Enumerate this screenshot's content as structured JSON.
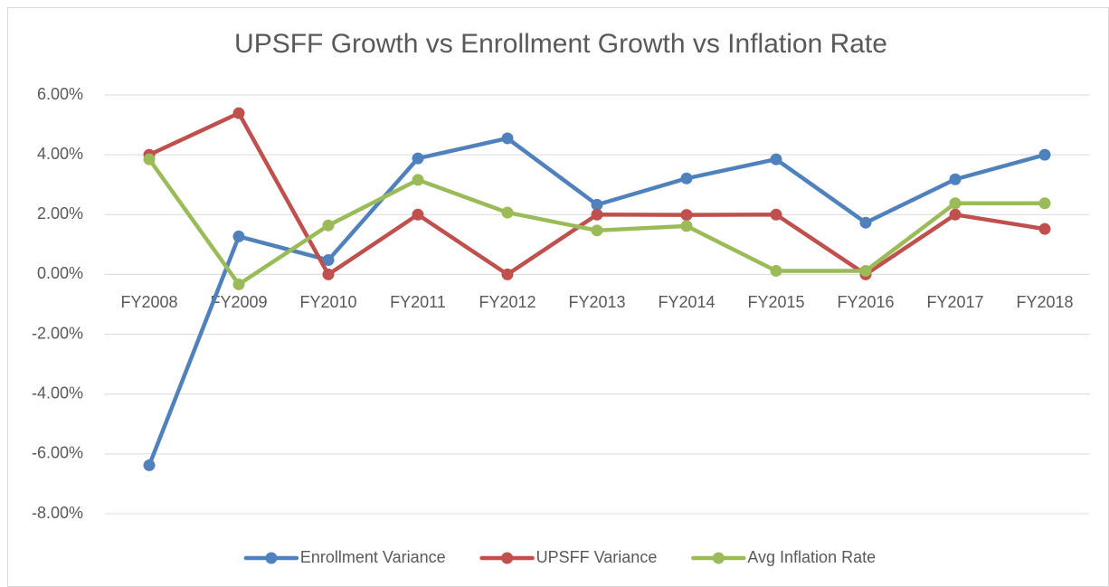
{
  "chart_data": {
    "type": "line",
    "title": "UPSFF Growth vs Enrollment Growth vs Inflation Rate",
    "categories": [
      "FY2008",
      "FY2009",
      "FY2010",
      "FY2011",
      "FY2012",
      "FY2013",
      "FY2014",
      "FY2015",
      "FY2016",
      "FY2017",
      "FY2018"
    ],
    "series": [
      {
        "name": "Enrollment Variance",
        "color": "#4f81bd",
        "values": [
          -6.38,
          1.27,
          0.48,
          3.88,
          4.55,
          2.33,
          3.21,
          3.85,
          1.73,
          3.18,
          4.0
        ]
      },
      {
        "name": "UPSFF Variance",
        "color": "#c0504d",
        "values": [
          4.0,
          5.39,
          0.0,
          2.0,
          0.0,
          2.0,
          1.99,
          2.0,
          0.0,
          2.0,
          1.52
        ]
      },
      {
        "name": "Avg Inflation Rate",
        "color": "#9bbb59",
        "values": [
          3.85,
          -0.33,
          1.64,
          3.16,
          2.07,
          1.47,
          1.62,
          0.12,
          0.12,
          2.38,
          2.38
        ]
      }
    ],
    "ylim": [
      -8,
      6
    ],
    "yticks": [
      {
        "value": -8,
        "label": "-8.00%"
      },
      {
        "value": -6,
        "label": "-6.00%"
      },
      {
        "value": -4,
        "label": "-4.00%"
      },
      {
        "value": -2,
        "label": "-2.00%"
      },
      {
        "value": 0,
        "label": "0.00%"
      },
      {
        "value": 2,
        "label": "2.00%"
      },
      {
        "value": 4,
        "label": "4.00%"
      },
      {
        "value": 6,
        "label": "6.00%"
      }
    ],
    "grid": true,
    "legend": "bottom"
  }
}
